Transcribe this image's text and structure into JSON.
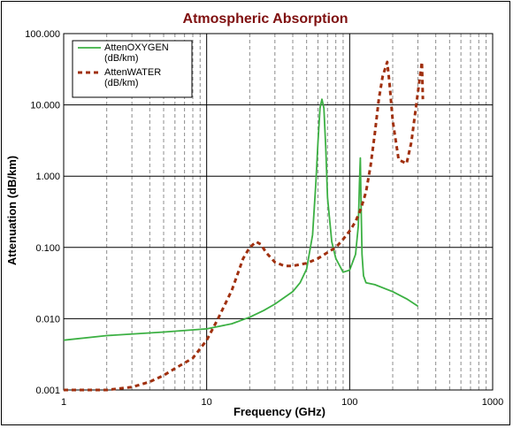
{
  "chart_data": {
    "type": "line",
    "title": "Atmospheric Absorption",
    "xlabel": "Frequency (GHz)",
    "ylabel": "Attenuation (dB/km)",
    "x_scale": "log",
    "y_scale": "log",
    "xlim": [
      1,
      1000
    ],
    "ylim": [
      0.001,
      100
    ],
    "x_ticks": [
      "1",
      "10",
      "100",
      "1000"
    ],
    "y_ticks": [
      "0.001",
      "0.010",
      "0.100",
      "1.000",
      "10.000",
      "100.000"
    ],
    "grid": {
      "major": true,
      "minor_x": true
    },
    "legend_position": "top-left",
    "series": [
      {
        "name_lines": [
          "AttenOXYGEN",
          "(dB/km)"
        ],
        "color": "#3cb043",
        "style": "solid",
        "x": [
          1,
          2,
          5,
          10,
          15,
          20,
          25,
          30,
          40,
          45,
          50,
          55,
          58,
          60,
          62,
          64,
          66,
          68,
          70,
          75,
          80,
          90,
          100,
          110,
          115,
          117,
          118.75,
          120,
          122,
          125,
          130,
          150,
          200,
          250,
          300
        ],
        "y": [
          0.005,
          0.0058,
          0.0065,
          0.0072,
          0.0085,
          0.0105,
          0.013,
          0.016,
          0.024,
          0.032,
          0.05,
          0.15,
          0.8,
          3,
          9,
          12,
          9,
          2.5,
          0.5,
          0.12,
          0.07,
          0.045,
          0.048,
          0.08,
          0.2,
          0.8,
          1.8,
          0.5,
          0.08,
          0.04,
          0.032,
          0.03,
          0.024,
          0.019,
          0.015
        ]
      },
      {
        "name_lines": [
          "AttenWATER",
          "(dB/km)"
        ],
        "color": "#a0300f",
        "style": "dashed",
        "x": [
          1,
          2,
          3,
          4,
          5,
          6,
          8,
          10,
          12,
          15,
          18,
          20,
          22.2,
          24,
          26,
          30,
          35,
          40,
          50,
          60,
          70,
          80,
          90,
          100,
          110,
          120,
          130,
          140,
          150,
          160,
          170,
          183,
          190,
          200,
          220,
          250,
          270,
          300,
          320,
          325
        ],
        "y": [
          0.001,
          0.001,
          0.0011,
          0.0013,
          0.0016,
          0.002,
          0.0028,
          0.005,
          0.01,
          0.025,
          0.07,
          0.1,
          0.12,
          0.11,
          0.085,
          0.062,
          0.055,
          0.055,
          0.06,
          0.07,
          0.085,
          0.1,
          0.13,
          0.17,
          0.23,
          0.35,
          0.6,
          1.4,
          4,
          12,
          25,
          40,
          20,
          6,
          1.7,
          1.5,
          3,
          15,
          40,
          12
        ]
      }
    ]
  }
}
